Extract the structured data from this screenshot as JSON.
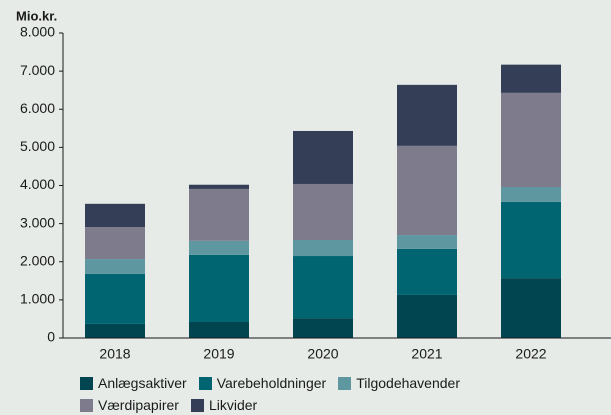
{
  "chart_data": {
    "type": "bar",
    "stacked": true,
    "title": "Mio.kr.",
    "categories": [
      "2018",
      "2019",
      "2020",
      "2021",
      "2022"
    ],
    "series": [
      {
        "name": "Anlægsaktiver",
        "color": "#00454f",
        "values": [
          370,
          420,
          520,
          1130,
          1570
        ]
      },
      {
        "name": "Varebeholdninger",
        "color": "#006570",
        "values": [
          1310,
          1760,
          1630,
          1210,
          2000
        ]
      },
      {
        "name": "Tilgodehavender",
        "color": "#5e97a0",
        "values": [
          390,
          370,
          420,
          360,
          390
        ]
      },
      {
        "name": "Værdipapirer",
        "color": "#7e7c8c",
        "values": [
          840,
          1360,
          1470,
          2340,
          2470
        ]
      },
      {
        "name": "Likvider",
        "color": "#353e57",
        "values": [
          610,
          110,
          1390,
          1600,
          740
        ]
      }
    ],
    "ylim": [
      0,
      8000
    ],
    "yticks": [
      0,
      {
        "value": 1000,
        "label": "1.000"
      },
      {
        "value": 2000,
        "label": "2.000"
      },
      {
        "value": 3000,
        "label": "3.000"
      },
      {
        "value": 4000,
        "label": "4.000"
      },
      {
        "value": 5000,
        "label": "5.000"
      },
      {
        "value": 6000,
        "label": "6.000"
      },
      {
        "value": 7000,
        "label": "7.000"
      },
      {
        "value": 8000,
        "label": "8.000"
      }
    ],
    "grid": false
  }
}
